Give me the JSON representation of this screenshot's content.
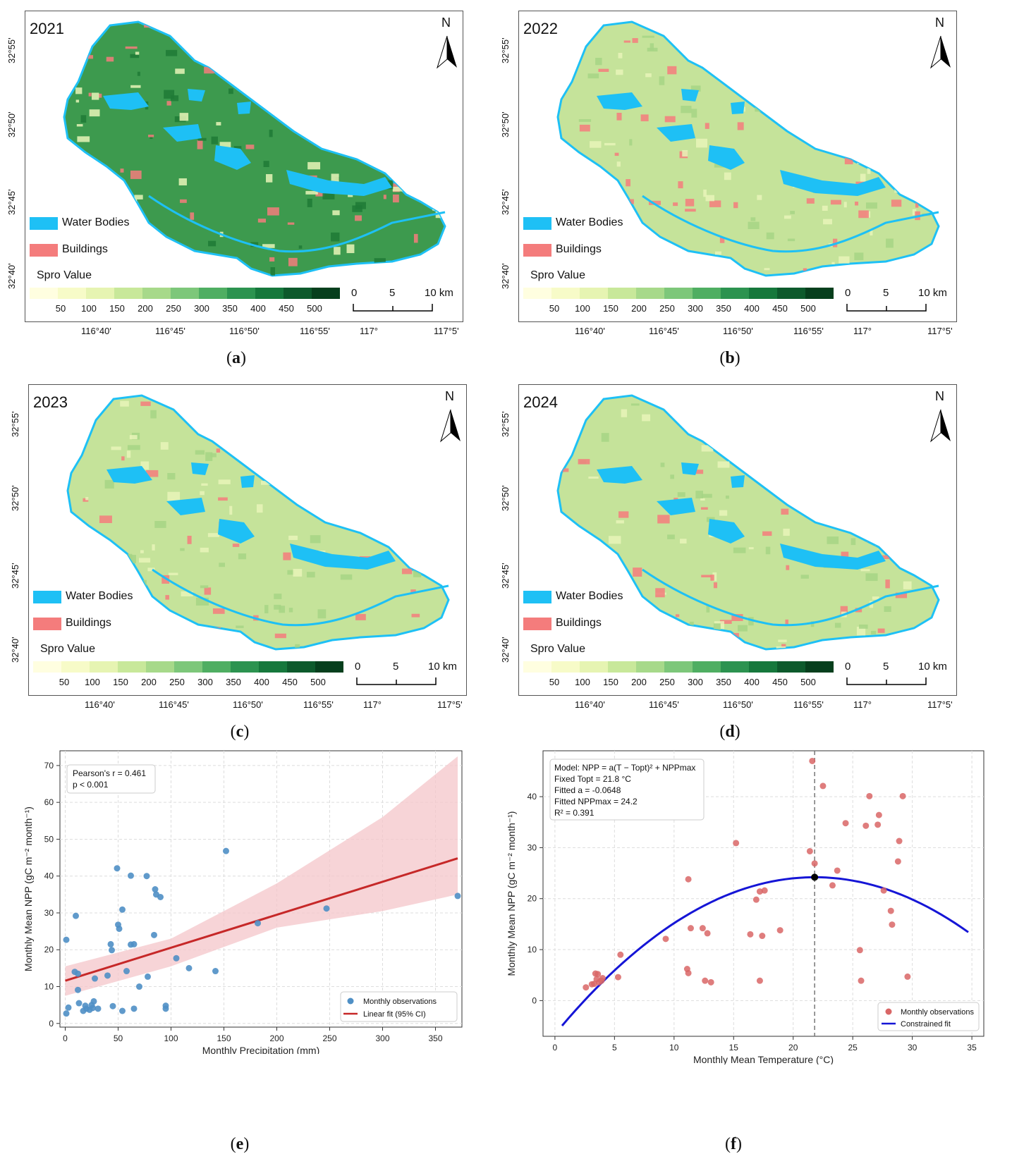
{
  "maps": [
    {
      "id": "a",
      "year": "2021",
      "caption_letter": "a",
      "intensity": 0.95
    },
    {
      "id": "b",
      "year": "2022",
      "caption_letter": "b",
      "intensity": 0.35
    },
    {
      "id": "c",
      "year": "2023",
      "caption_letter": "c",
      "intensity": 0.3
    },
    {
      "id": "d",
      "year": "2024",
      "caption_letter": "d",
      "intensity": 0.32
    }
  ],
  "map_common": {
    "north_label": "N",
    "legend_water": "Water Bodies",
    "legend_buildings": "Buildings",
    "spro_title": "Spro Value",
    "ramp_labels": [
      "50",
      "100",
      "150",
      "200",
      "250",
      "300",
      "350",
      "400",
      "450",
      "500"
    ],
    "scale_labels": [
      "0",
      "5",
      "10 km"
    ],
    "lon_labels": [
      "116°40'",
      "116°45'",
      "116°50'",
      "116°55'",
      "117°",
      "117°5'"
    ],
    "lat_labels": [
      "32°55'",
      "32°50'",
      "32°45'",
      "32°40'"
    ],
    "colors": {
      "water": "#1ec0f5",
      "buildings": "#f47c7c"
    },
    "ramp_colors": [
      "#fffee0",
      "#f7fbc8",
      "#e6f4b2",
      "#c8e89a",
      "#a7d98a",
      "#7dc77a",
      "#4fae62",
      "#2c9350",
      "#16783c",
      "#0d5a2c",
      "#063f1d"
    ]
  },
  "panel_e": {
    "caption_letter": "e",
    "annotation_line1": "Pearson's r = 0.461",
    "annotation_line2": "p < 0.001",
    "legend_points": "Monthly observations",
    "legend_fit": "Linear fit (95% CI)",
    "colors": {
      "points": "#4f8fc5",
      "fit": "#c62828",
      "band": "#f4c6ca"
    }
  },
  "panel_f": {
    "caption_letter": "f",
    "model_line1": "Model: NPP = a(T − Topt)² + NPPmax",
    "model_line2": "Fixed Topt = 21.8 °C",
    "model_line3": "Fitted a = -0.0648",
    "model_line4": "Fitted NPPmax = 24.2",
    "model_line5": "R² = 0.391",
    "legend_points": "Monthly observations",
    "legend_fit": "Constrained fit",
    "colors": {
      "points": "#d96666",
      "fit": "#1515d6"
    }
  },
  "chart_data": [
    {
      "type": "scatter",
      "xlabel": "Monthly Precipitation (mm)",
      "ylabel": "Monthly Mean NPP (gC m⁻² month⁻¹)",
      "xlim": [
        -5,
        375
      ],
      "ylim": [
        -1,
        74
      ],
      "xticks": [
        0,
        50,
        100,
        150,
        200,
        250,
        300,
        350
      ],
      "yticks": [
        0,
        10,
        20,
        30,
        40,
        50,
        60,
        70
      ],
      "grid": true,
      "legend": "bottom-right",
      "series": [
        {
          "name": "Monthly observations",
          "points": [
            [
              1,
              22.7
            ],
            [
              1,
              2.7
            ],
            [
              3,
              4.3
            ],
            [
              9,
              14
            ],
            [
              10,
              29.2
            ],
            [
              12,
              9.1
            ],
            [
              12,
              13.5
            ],
            [
              13,
              5.5
            ],
            [
              17,
              3.4
            ],
            [
              19,
              4.8
            ],
            [
              20,
              4
            ],
            [
              23,
              3.7
            ],
            [
              25,
              5
            ],
            [
              26,
              4.2
            ],
            [
              27,
              6
            ],
            [
              28,
              12.2
            ],
            [
              31,
              4
            ],
            [
              40,
              13
            ],
            [
              43,
              21.5
            ],
            [
              44,
              19.9
            ],
            [
              45,
              4.7
            ],
            [
              49,
              42.1
            ],
            [
              50,
              26.8
            ],
            [
              51,
              25.7
            ],
            [
              54,
              30.9
            ],
            [
              54,
              3.4
            ],
            [
              58,
              14.2
            ],
            [
              62,
              40.1
            ],
            [
              62,
              21.4
            ],
            [
              65,
              21.5
            ],
            [
              65,
              4
            ],
            [
              70,
              10
            ],
            [
              77,
              40
            ],
            [
              78,
              12.7
            ],
            [
              84,
              24
            ],
            [
              85,
              36.4
            ],
            [
              86,
              35
            ],
            [
              90,
              34.3
            ],
            [
              95,
              4.8
            ],
            [
              95,
              4
            ],
            [
              105,
              17.7
            ],
            [
              117,
              15
            ],
            [
              142,
              14.2
            ],
            [
              152,
              46.8
            ],
            [
              182,
              27.2
            ],
            [
              247,
              31.2
            ],
            [
              371,
              34.6
            ]
          ]
        },
        {
          "name": "Linear fit (95% CI)",
          "line": [
            [
              0,
              11.6
            ],
            [
              371,
              44.8
            ]
          ],
          "ci_lower": [
            [
              0,
              7.5
            ],
            [
              100,
              15.5
            ],
            [
              200,
              26
            ],
            [
              300,
              30.5
            ],
            [
              371,
              35
            ]
          ],
          "ci_upper": [
            [
              0,
              15.5
            ],
            [
              100,
              23
            ],
            [
              200,
              38
            ],
            [
              300,
              56
            ],
            [
              371,
              72.5
            ]
          ]
        }
      ]
    },
    {
      "type": "scatter",
      "xlabel": "Monthly Mean Temperature (°C)",
      "ylabel": "Monthly Mean NPP (gC m⁻² month⁻¹)",
      "xlim": [
        -1,
        36
      ],
      "ylim": [
        -7,
        49
      ],
      "xticks": [
        0,
        5,
        10,
        15,
        20,
        25,
        30,
        35
      ],
      "yticks": [
        0,
        10,
        20,
        30,
        40
      ],
      "grid": true,
      "legend": "bottom-right",
      "vline": 21.8,
      "vertex": [
        21.8,
        24.2
      ],
      "fit": {
        "a": -0.0648,
        "topt": 21.8,
        "nppmax": 24.2,
        "x_range": [
          0.6,
          34.7
        ]
      },
      "series": [
        {
          "name": "Monthly observations",
          "points": [
            [
              2.6,
              2.6
            ],
            [
              3.1,
              3.2
            ],
            [
              3.3,
              3.3
            ],
            [
              3.4,
              5.3
            ],
            [
              3.5,
              4.2
            ],
            [
              3.6,
              5.2
            ],
            [
              3.7,
              3.6
            ],
            [
              3.9,
              3.9
            ],
            [
              4,
              4.4
            ],
            [
              5.3,
              4.6
            ],
            [
              5.5,
              9
            ],
            [
              9.3,
              12.1
            ],
            [
              11.1,
              6.2
            ],
            [
              11.2,
              23.8
            ],
            [
              11.2,
              5.4
            ],
            [
              11.4,
              14.2
            ],
            [
              12.4,
              14.2
            ],
            [
              12.6,
              3.9
            ],
            [
              12.8,
              13.2
            ],
            [
              13.1,
              3.6
            ],
            [
              15.2,
              30.9
            ],
            [
              16.4,
              13
            ],
            [
              16.9,
              19.8
            ],
            [
              17.2,
              21.4
            ],
            [
              17.2,
              3.9
            ],
            [
              17.4,
              12.7
            ],
            [
              17.6,
              21.6
            ],
            [
              18.9,
              13.8
            ],
            [
              21.4,
              29.3
            ],
            [
              21.6,
              47
            ],
            [
              21.8,
              26.9
            ],
            [
              22.5,
              42.1
            ],
            [
              23.3,
              22.6
            ],
            [
              23.7,
              25.5
            ],
            [
              24.4,
              34.8
            ],
            [
              25.6,
              9.9
            ],
            [
              25.7,
              3.9
            ],
            [
              26.1,
              34.3
            ],
            [
              26.4,
              40.1
            ],
            [
              27.1,
              34.5
            ],
            [
              27.2,
              36.4
            ],
            [
              27.6,
              21.6
            ],
            [
              28.2,
              17.6
            ],
            [
              28.3,
              14.9
            ],
            [
              28.8,
              27.3
            ],
            [
              28.9,
              31.3
            ],
            [
              29.2,
              40.1
            ],
            [
              29.6,
              4.7
            ]
          ]
        },
        {
          "name": "Constrained fit"
        }
      ]
    }
  ]
}
